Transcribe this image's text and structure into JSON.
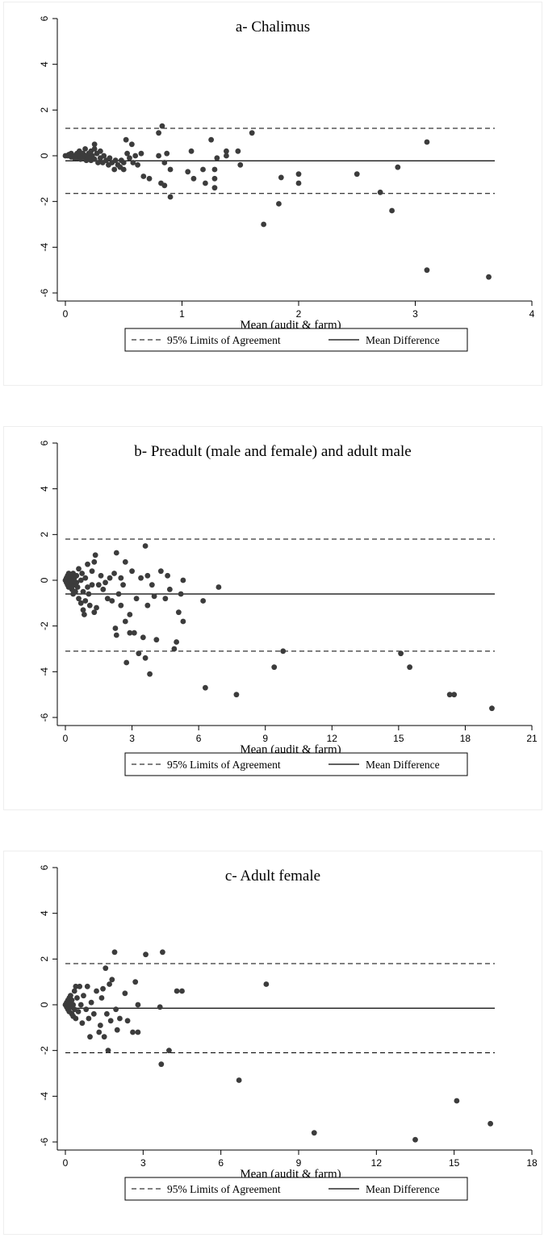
{
  "chart_data": [
    {
      "type": "scatter",
      "title": "a- Chalimus",
      "xlabel": "Mean (audit & farm)",
      "ylabel": "",
      "xlim": [
        0,
        4
      ],
      "ylim": [
        -6,
        6
      ],
      "xticks": [
        "0",
        "1",
        "2",
        "3",
        "4"
      ],
      "yticks": [
        "-6",
        "-4",
        "-2",
        "0",
        "2",
        "4",
        "6"
      ],
      "grid": false,
      "legend_position": "bottom",
      "lines": {
        "upper_loa": 1.2,
        "lower_loa": -1.65,
        "mean_diff": -0.22
      },
      "legend": [
        "95% Limits of Agreement",
        "Mean Difference"
      ],
      "points": [
        [
          0.0,
          0.0
        ],
        [
          0.02,
          0.0
        ],
        [
          0.03,
          0.05
        ],
        [
          0.05,
          -0.05
        ],
        [
          0.05,
          0.1
        ],
        [
          0.07,
          0.0
        ],
        [
          0.08,
          -0.1
        ],
        [
          0.1,
          0.1
        ],
        [
          0.1,
          -0.1
        ],
        [
          0.12,
          0.2
        ],
        [
          0.12,
          0.0
        ],
        [
          0.13,
          -0.15
        ],
        [
          0.15,
          0.1
        ],
        [
          0.15,
          -0.1
        ],
        [
          0.17,
          0.3
        ],
        [
          0.17,
          0.0
        ],
        [
          0.18,
          -0.2
        ],
        [
          0.2,
          0.1
        ],
        [
          0.2,
          -0.1
        ],
        [
          0.22,
          0.2
        ],
        [
          0.22,
          -0.2
        ],
        [
          0.23,
          0.0
        ],
        [
          0.25,
          0.5
        ],
        [
          0.25,
          0.3
        ],
        [
          0.25,
          -0.15
        ],
        [
          0.27,
          0.1
        ],
        [
          0.28,
          -0.3
        ],
        [
          0.3,
          0.2
        ],
        [
          0.3,
          -0.1
        ],
        [
          0.32,
          -0.3
        ],
        [
          0.33,
          0.0
        ],
        [
          0.35,
          -0.2
        ],
        [
          0.37,
          -0.4
        ],
        [
          0.38,
          -0.1
        ],
        [
          0.4,
          -0.3
        ],
        [
          0.42,
          -0.6
        ],
        [
          0.43,
          -0.2
        ],
        [
          0.45,
          -0.4
        ],
        [
          0.47,
          -0.5
        ],
        [
          0.48,
          -0.2
        ],
        [
          0.5,
          -0.6
        ],
        [
          0.5,
          -0.3
        ],
        [
          0.52,
          0.7
        ],
        [
          0.53,
          0.1
        ],
        [
          0.55,
          -0.1
        ],
        [
          0.57,
          0.5
        ],
        [
          0.58,
          -0.3
        ],
        [
          0.6,
          0.0
        ],
        [
          0.62,
          -0.4
        ],
        [
          0.65,
          0.1
        ],
        [
          0.67,
          -0.9
        ],
        [
          0.72,
          -1.0
        ],
        [
          0.8,
          1.0
        ],
        [
          0.8,
          0.0
        ],
        [
          0.82,
          -1.2
        ],
        [
          0.83,
          1.3
        ],
        [
          0.85,
          -0.3
        ],
        [
          0.85,
          -1.3
        ],
        [
          0.87,
          0.1
        ],
        [
          0.9,
          -0.6
        ],
        [
          0.9,
          -1.8
        ],
        [
          1.05,
          -0.7
        ],
        [
          1.08,
          0.2
        ],
        [
          1.1,
          -1.0
        ],
        [
          1.18,
          -0.6
        ],
        [
          1.2,
          -1.2
        ],
        [
          1.25,
          0.7
        ],
        [
          1.28,
          -0.6
        ],
        [
          1.28,
          -1.0
        ],
        [
          1.28,
          -1.4
        ],
        [
          1.3,
          -0.1
        ],
        [
          1.38,
          0.0
        ],
        [
          1.38,
          0.2
        ],
        [
          1.48,
          0.2
        ],
        [
          1.5,
          -0.4
        ],
        [
          1.6,
          1.0
        ],
        [
          1.7,
          -3.0
        ],
        [
          1.83,
          -2.1
        ],
        [
          1.85,
          -0.95
        ],
        [
          2.0,
          -0.8
        ],
        [
          2.0,
          -1.2
        ],
        [
          2.5,
          -0.8
        ],
        [
          2.7,
          -1.6
        ],
        [
          2.8,
          -2.4
        ],
        [
          2.85,
          -0.5
        ],
        [
          3.1,
          0.6
        ],
        [
          3.1,
          -5.0
        ],
        [
          3.63,
          -5.3
        ]
      ]
    },
    {
      "type": "scatter",
      "title": "b- Preadult (male and female) and adult male",
      "xlabel": "Mean (audit & farm)",
      "ylabel": "",
      "xlim": [
        0,
        21
      ],
      "ylim": [
        -6,
        6
      ],
      "xticks": [
        "0",
        "3",
        "6",
        "9",
        "12",
        "15",
        "18",
        "21"
      ],
      "yticks": [
        "-6",
        "-4",
        "-2",
        "0",
        "2",
        "4",
        "6"
      ],
      "grid": false,
      "legend_position": "bottom",
      "lines": {
        "upper_loa": 1.8,
        "lower_loa": -3.1,
        "mean_diff": -0.6
      },
      "legend": [
        "95% Limits of Agreement",
        "Mean Difference"
      ],
      "points": [
        [
          0.0,
          0.0
        ],
        [
          0.05,
          0.1
        ],
        [
          0.05,
          -0.1
        ],
        [
          0.1,
          0.2
        ],
        [
          0.1,
          -0.2
        ],
        [
          0.1,
          0.0
        ],
        [
          0.15,
          0.3
        ],
        [
          0.15,
          -0.3
        ],
        [
          0.2,
          0.1
        ],
        [
          0.2,
          -0.1
        ],
        [
          0.2,
          0.0
        ],
        [
          0.25,
          0.2
        ],
        [
          0.25,
          -0.2
        ],
        [
          0.3,
          -0.4
        ],
        [
          0.3,
          0.0
        ],
        [
          0.35,
          0.3
        ],
        [
          0.35,
          -0.6
        ],
        [
          0.4,
          0.1
        ],
        [
          0.4,
          -0.2
        ],
        [
          0.45,
          -0.5
        ],
        [
          0.5,
          0.2
        ],
        [
          0.5,
          -0.1
        ],
        [
          0.55,
          -0.3
        ],
        [
          0.6,
          0.5
        ],
        [
          0.6,
          -0.8
        ],
        [
          0.7,
          0.0
        ],
        [
          0.7,
          -1.0
        ],
        [
          0.75,
          0.3
        ],
        [
          0.8,
          -0.5
        ],
        [
          0.8,
          -1.3
        ],
        [
          0.85,
          -1.5
        ],
        [
          0.9,
          0.1
        ],
        [
          0.9,
          -0.9
        ],
        [
          1.0,
          0.7
        ],
        [
          1.0,
          -0.3
        ],
        [
          1.05,
          -0.6
        ],
        [
          1.1,
          -1.1
        ],
        [
          1.2,
          0.4
        ],
        [
          1.2,
          -0.2
        ],
        [
          1.3,
          -1.4
        ],
        [
          1.3,
          0.8
        ],
        [
          1.35,
          1.1
        ],
        [
          1.4,
          -1.2
        ],
        [
          1.5,
          -0.2
        ],
        [
          1.6,
          0.2
        ],
        [
          1.7,
          -0.4
        ],
        [
          1.8,
          -0.1
        ],
        [
          1.9,
          -0.8
        ],
        [
          2.0,
          0.1
        ],
        [
          2.1,
          -0.9
        ],
        [
          2.2,
          0.3
        ],
        [
          2.25,
          -2.1
        ],
        [
          2.3,
          -2.4
        ],
        [
          2.3,
          1.2
        ],
        [
          2.4,
          -0.6
        ],
        [
          2.5,
          -1.1
        ],
        [
          2.5,
          0.1
        ],
        [
          2.6,
          -0.2
        ],
        [
          2.7,
          0.8
        ],
        [
          2.7,
          -1.8
        ],
        [
          2.75,
          -3.6
        ],
        [
          2.9,
          -1.5
        ],
        [
          2.9,
          -2.3
        ],
        [
          3.0,
          0.4
        ],
        [
          3.1,
          -2.3
        ],
        [
          3.2,
          -0.8
        ],
        [
          3.3,
          -3.2
        ],
        [
          3.4,
          0.1
        ],
        [
          3.5,
          -2.5
        ],
        [
          3.6,
          1.5
        ],
        [
          3.6,
          -3.4
        ],
        [
          3.7,
          0.2
        ],
        [
          3.7,
          -1.1
        ],
        [
          3.8,
          -4.1
        ],
        [
          3.9,
          -0.2
        ],
        [
          4.0,
          -0.7
        ],
        [
          4.1,
          -2.6
        ],
        [
          4.3,
          0.4
        ],
        [
          4.5,
          -0.8
        ],
        [
          4.6,
          0.2
        ],
        [
          4.7,
          -0.4
        ],
        [
          4.9,
          -3.0
        ],
        [
          5.0,
          -2.7
        ],
        [
          5.1,
          -1.4
        ],
        [
          5.2,
          -0.6
        ],
        [
          5.3,
          -1.8
        ],
        [
          5.3,
          0.0
        ],
        [
          6.2,
          -0.9
        ],
        [
          6.3,
          -4.7
        ],
        [
          6.9,
          -0.3
        ],
        [
          7.7,
          -5.0
        ],
        [
          9.4,
          -3.8
        ],
        [
          9.8,
          -3.1
        ],
        [
          15.1,
          -3.2
        ],
        [
          15.5,
          -3.8
        ],
        [
          17.3,
          -5.0
        ],
        [
          17.5,
          -5.0
        ],
        [
          19.2,
          -5.6
        ]
      ]
    },
    {
      "type": "scatter",
      "title": "c- Adult female",
      "xlabel": "Mean (audit & farm)",
      "ylabel": "",
      "xlim": [
        0,
        18
      ],
      "ylim": [
        -6,
        6
      ],
      "xticks": [
        "0",
        "3",
        "6",
        "9",
        "12",
        "15",
        "18"
      ],
      "yticks": [
        "-6",
        "-4",
        "-2",
        "0",
        "2",
        "4",
        "6"
      ],
      "grid": false,
      "legend_position": "bottom",
      "lines": {
        "upper_loa": 1.8,
        "lower_loa": -2.1,
        "mean_diff": -0.15
      },
      "legend": [
        "95% Limits of Agreement",
        "Mean Difference"
      ],
      "points": [
        [
          0.0,
          0.0
        ],
        [
          0.05,
          0.1
        ],
        [
          0.05,
          -0.1
        ],
        [
          0.1,
          0.2
        ],
        [
          0.1,
          -0.2
        ],
        [
          0.1,
          0.0
        ],
        [
          0.15,
          0.3
        ],
        [
          0.15,
          -0.3
        ],
        [
          0.2,
          0.1
        ],
        [
          0.2,
          -0.1
        ],
        [
          0.2,
          0.4
        ],
        [
          0.25,
          -0.4
        ],
        [
          0.25,
          0.2
        ],
        [
          0.3,
          -0.5
        ],
        [
          0.3,
          0.0
        ],
        [
          0.35,
          0.6
        ],
        [
          0.35,
          -0.2
        ],
        [
          0.4,
          0.8
        ],
        [
          0.4,
          -0.6
        ],
        [
          0.45,
          0.3
        ],
        [
          0.5,
          -0.3
        ],
        [
          0.55,
          0.8
        ],
        [
          0.6,
          0.0
        ],
        [
          0.65,
          -0.8
        ],
        [
          0.7,
          0.4
        ],
        [
          0.8,
          -0.2
        ],
        [
          0.85,
          0.8
        ],
        [
          0.9,
          -0.6
        ],
        [
          0.95,
          -1.4
        ],
        [
          1.0,
          0.1
        ],
        [
          1.1,
          -0.4
        ],
        [
          1.2,
          0.6
        ],
        [
          1.3,
          -1.2
        ],
        [
          1.35,
          -0.9
        ],
        [
          1.4,
          0.3
        ],
        [
          1.45,
          0.7
        ],
        [
          1.5,
          -1.4
        ],
        [
          1.55,
          1.6
        ],
        [
          1.6,
          -0.4
        ],
        [
          1.65,
          -2.0
        ],
        [
          1.7,
          0.9
        ],
        [
          1.75,
          -0.7
        ],
        [
          1.8,
          1.1
        ],
        [
          1.9,
          2.3
        ],
        [
          1.95,
          -0.2
        ],
        [
          2.0,
          -1.1
        ],
        [
          2.1,
          -0.6
        ],
        [
          2.3,
          0.5
        ],
        [
          2.4,
          -0.7
        ],
        [
          2.6,
          -1.2
        ],
        [
          2.7,
          1.0
        ],
        [
          2.8,
          -1.2
        ],
        [
          2.8,
          0.0
        ],
        [
          3.1,
          2.2
        ],
        [
          3.65,
          -0.1
        ],
        [
          3.7,
          -2.6
        ],
        [
          3.75,
          2.3
        ],
        [
          4.0,
          -2.0
        ],
        [
          4.3,
          0.6
        ],
        [
          4.5,
          0.6
        ],
        [
          6.7,
          -3.3
        ],
        [
          7.75,
          0.9
        ],
        [
          9.6,
          -5.6
        ],
        [
          13.5,
          -5.9
        ],
        [
          15.1,
          -4.2
        ],
        [
          16.4,
          -5.2
        ]
      ]
    }
  ]
}
